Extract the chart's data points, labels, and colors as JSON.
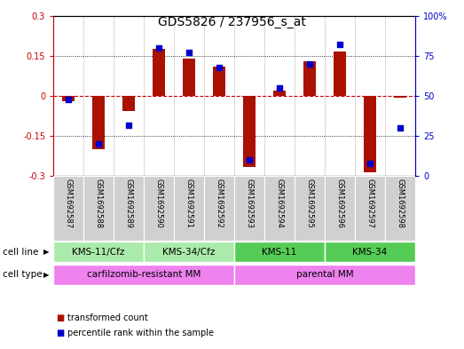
{
  "title": "GDS5826 / 237956_s_at",
  "samples": [
    "GSM1692587",
    "GSM1692588",
    "GSM1692589",
    "GSM1692590",
    "GSM1692591",
    "GSM1692592",
    "GSM1692593",
    "GSM1692594",
    "GSM1692595",
    "GSM1692596",
    "GSM1692597",
    "GSM1692598"
  ],
  "transformed_count": [
    -0.02,
    -0.2,
    -0.055,
    0.175,
    0.14,
    0.11,
    -0.265,
    0.02,
    0.13,
    0.165,
    -0.285,
    -0.005
  ],
  "percentile_rank": [
    48,
    20,
    32,
    80,
    77,
    68,
    10,
    55,
    70,
    82,
    8,
    30
  ],
  "cell_line_groups": [
    {
      "label": "KMS-11/Cfz",
      "start": 0,
      "end": 2,
      "color": "#aaeaaa"
    },
    {
      "label": "KMS-34/Cfz",
      "start": 3,
      "end": 5,
      "color": "#aaeaaa"
    },
    {
      "label": "KMS-11",
      "start": 6,
      "end": 8,
      "color": "#55cc55"
    },
    {
      "label": "KMS-34",
      "start": 9,
      "end": 11,
      "color": "#55cc55"
    }
  ],
  "cell_type_groups": [
    {
      "label": "carfilzomib-resistant MM",
      "start": 0,
      "end": 5,
      "color": "#ee82ee"
    },
    {
      "label": "parental MM",
      "start": 6,
      "end": 11,
      "color": "#ee82ee"
    }
  ],
  "bar_color": "#aa1100",
  "dot_color": "#0000cc",
  "ylim": [
    -0.3,
    0.3
  ],
  "y2lim": [
    0,
    100
  ],
  "yticks": [
    -0.3,
    -0.15,
    0,
    0.15,
    0.3
  ],
  "y2ticks": [
    0,
    25,
    50,
    75,
    100
  ],
  "background_color": "#ffffff",
  "title_fontsize": 10,
  "tick_fontsize": 7,
  "sample_fontsize": 6,
  "annot_fontsize": 7.5
}
